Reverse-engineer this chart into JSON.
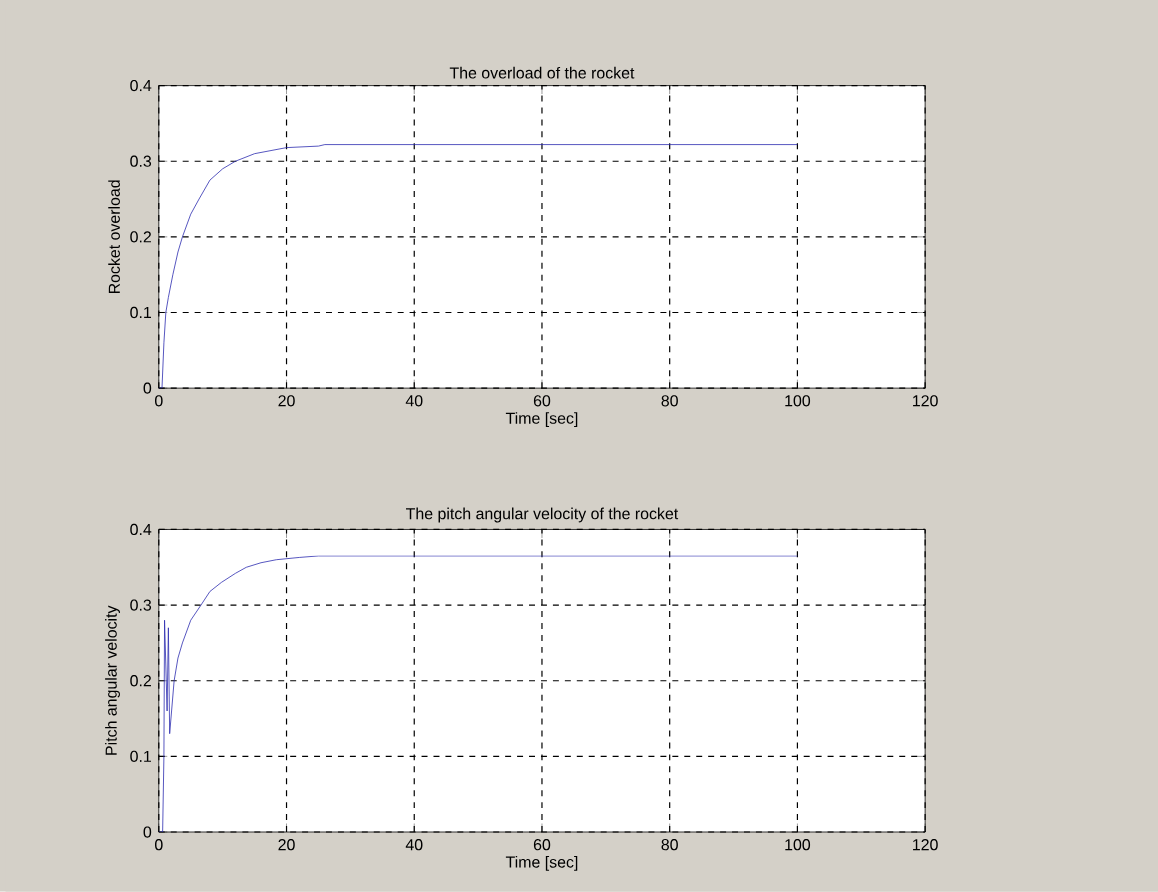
{
  "chart_data": [
    {
      "type": "line",
      "title": "The overload of the rocket",
      "xlabel": "Time [sec]",
      "ylabel": "Rocket overload",
      "xlim": [
        0,
        120
      ],
      "ylim": [
        0,
        0.4
      ],
      "xticks": [
        0,
        20,
        40,
        60,
        80,
        100,
        120
      ],
      "yticks": [
        0,
        0.1,
        0.2,
        0.3,
        0.4
      ],
      "grid": true,
      "series": [
        {
          "color": "#2b2bb0",
          "x": [
            0,
            0.5,
            0.8,
            1.1,
            1.5,
            2.2,
            3,
            3.7,
            5,
            6.3,
            8,
            10,
            12,
            15,
            20,
            25,
            26,
            100
          ],
          "values": [
            0,
            0,
            0.06,
            0.1,
            0.12,
            0.15,
            0.18,
            0.2,
            0.23,
            0.25,
            0.275,
            0.29,
            0.3,
            0.31,
            0.318,
            0.32,
            0.322,
            0.322
          ]
        }
      ]
    },
    {
      "type": "line",
      "title": "The pitch angular velocity of the rocket",
      "xlabel": "Time [sec]",
      "ylabel": "Pitch angular velocity",
      "xlim": [
        0,
        120
      ],
      "ylim": [
        0,
        0.4
      ],
      "xticks": [
        0,
        20,
        40,
        60,
        80,
        100,
        120
      ],
      "yticks": [
        0,
        0.1,
        0.2,
        0.3,
        0.4
      ],
      "grid": true,
      "series": [
        {
          "color": "#2b2bb0",
          "x": [
            0,
            0.6,
            0.8,
            0.9,
            1.3,
            1.5,
            1.7,
            2.0,
            2.4,
            3,
            3.7,
            5,
            6.6,
            8,
            9.8,
            12,
            13.7,
            16,
            18.4,
            22,
            25,
            100
          ],
          "values": [
            0,
            0,
            0.1,
            0.28,
            0.16,
            0.27,
            0.13,
            0.16,
            0.2,
            0.23,
            0.25,
            0.28,
            0.3,
            0.318,
            0.33,
            0.342,
            0.35,
            0.356,
            0.36,
            0.363,
            0.365,
            0.365
          ]
        }
      ]
    }
  ]
}
